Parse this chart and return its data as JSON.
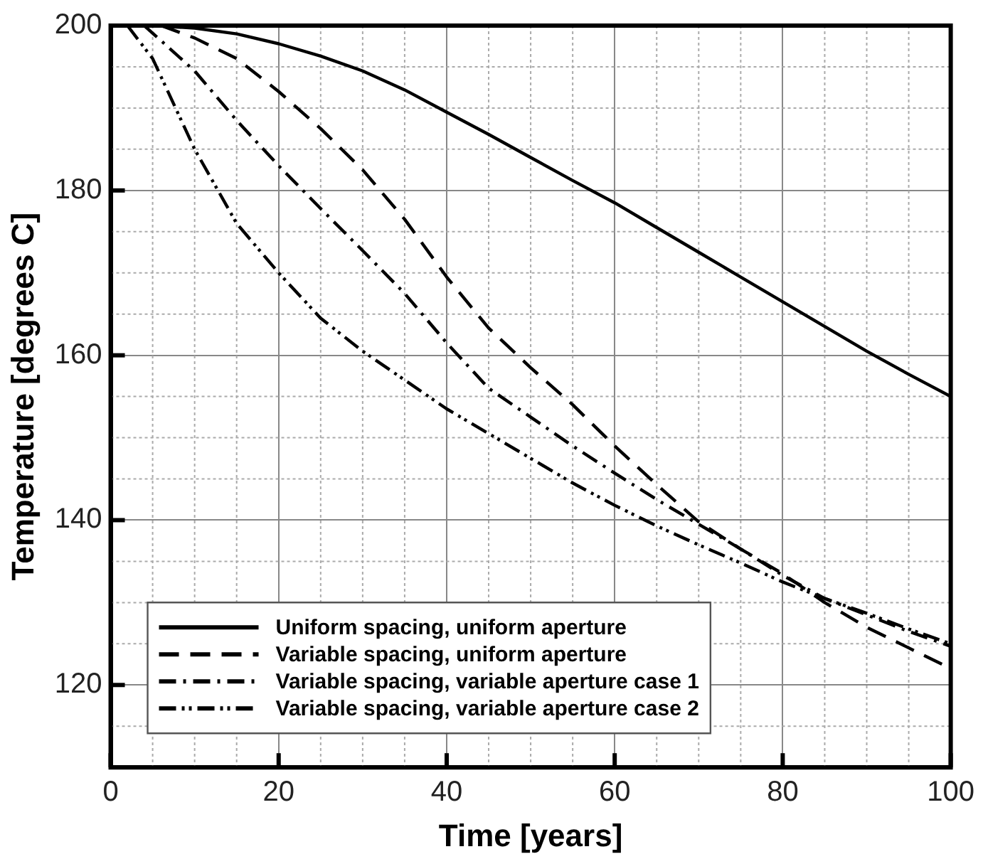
{
  "chart_data": {
    "type": "line",
    "xlabel": "Time [years]",
    "ylabel": "Temperature [degrees C]",
    "x": [
      0,
      5,
      10,
      15,
      20,
      25,
      30,
      35,
      40,
      45,
      50,
      55,
      60,
      65,
      70,
      75,
      80,
      85,
      90,
      95,
      100
    ],
    "series": [
      {
        "name": "Uniform spacing, uniform aperture",
        "color": "#000000",
        "line_style": "solid",
        "values": [
          200,
          200,
          199.7,
          199,
          197.8,
          196.3,
          194.5,
          192.2,
          189.5,
          186.8,
          184,
          181.2,
          178.5,
          175.5,
          172.5,
          169.5,
          166.5,
          163.5,
          160.5,
          157.7,
          155
        ]
      },
      {
        "name": "Variable spacing, uniform aperture",
        "color": "#000000",
        "line_style": "dashed",
        "x": [
          6,
          10,
          15,
          20,
          25,
          30,
          35,
          40,
          45,
          50,
          55,
          60,
          65,
          70,
          75,
          80,
          85,
          90,
          95,
          100
        ],
        "values": [
          200,
          198.5,
          196,
          192,
          187.5,
          182.5,
          176.5,
          169.5,
          163.3,
          158.5,
          154,
          149,
          144.3,
          139.8,
          136.5,
          133.5,
          130,
          127,
          124.5,
          122
        ]
      },
      {
        "name": "Variable spacing, variable aperture case 1",
        "color": "#000000",
        "line_style": "dashdot",
        "x": [
          4,
          10,
          15,
          20,
          25,
          30,
          35,
          40,
          45,
          50,
          55,
          60,
          65,
          70,
          75,
          80,
          85,
          90,
          95,
          100
        ],
        "values": [
          200,
          194.5,
          188.5,
          183,
          177.8,
          172.7,
          167.5,
          161.5,
          156,
          152.5,
          149,
          145.7,
          142.5,
          139.5,
          136.5,
          133.3,
          130.5,
          128.5,
          126.5,
          124.7
        ]
      },
      {
        "name": "Variable spacing, variable aperture case 2",
        "color": "#000000",
        "line_style": "dashdotdot",
        "x": [
          2,
          5,
          10,
          15,
          20,
          25,
          30,
          35,
          40,
          45,
          50,
          55,
          60,
          65,
          70,
          75,
          80,
          85,
          90,
          95,
          100
        ],
        "values": [
          200,
          196,
          185,
          176,
          170,
          164.5,
          160.5,
          157,
          153.5,
          150.5,
          147.5,
          144.5,
          141.8,
          139.3,
          137,
          134.8,
          132.5,
          130.5,
          128.7,
          126.8,
          125
        ]
      }
    ],
    "xlim": [
      0,
      100
    ],
    "xticks": [
      0,
      20,
      40,
      60,
      80,
      100
    ],
    "ylim": [
      110,
      200
    ],
    "yticks": [
      120,
      140,
      160,
      180,
      200
    ],
    "grid": true,
    "legend": "bottom left",
    "marker": "none"
  }
}
